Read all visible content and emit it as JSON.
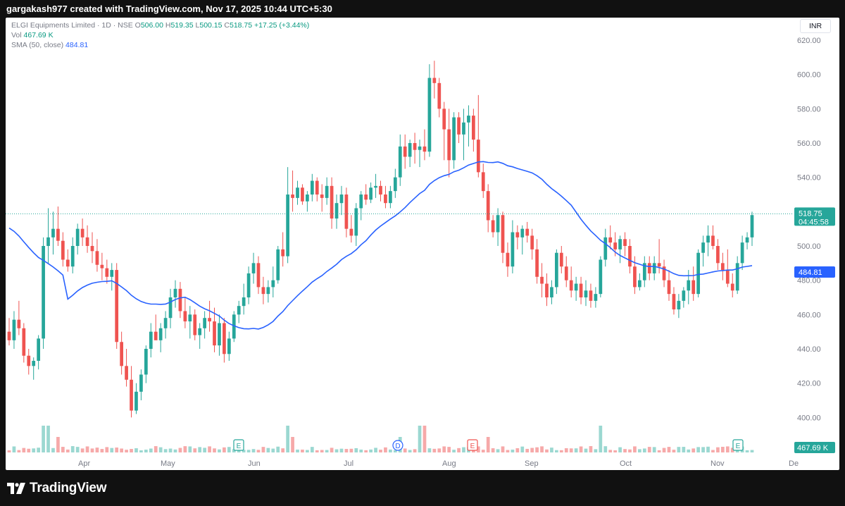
{
  "header": {
    "credit": "gargakash977 created with TradingView.com, Nov 17, 2025 10:44 UTC+5:30"
  },
  "legend": {
    "symbol": "ELGI Equipments Limited · 1D · NSE",
    "o_label": "O",
    "o": "506.00",
    "h_label": "H",
    "h": "519.35",
    "l_label": "L",
    "l": "500.15",
    "c_label": "C",
    "c": "518.75",
    "change": "+17.25 (+3.44%)",
    "vol_label": "Vol",
    "vol": "467.69 K",
    "sma_label": "SMA (50, close)",
    "sma": "484.81"
  },
  "currency": "INR",
  "footer": {
    "brand": "TradingView"
  },
  "colors": {
    "up": "#26a69a",
    "down": "#ef5350",
    "sma": "#2962ff",
    "vol_up": "#9bd8d1",
    "vol_down": "#f6a9a9"
  },
  "chart_data": {
    "type": "candlestick",
    "price_axis": {
      "min": 380,
      "max": 620,
      "ticks": [
        "620.00",
        "600.00",
        "580.00",
        "560.00",
        "540.00",
        "520.00",
        "500.00",
        "480.00",
        "460.00",
        "440.00",
        "420.00",
        "400.00"
      ]
    },
    "x_ticks": [
      "Apr",
      "May",
      "Jun",
      "Jul",
      "Aug",
      "Sep",
      "Oct",
      "Nov",
      "De"
    ],
    "last_price": {
      "label": "518.75",
      "countdown": "04:45:58",
      "value": 518.75
    },
    "sma_value": {
      "label": "484.81",
      "value": 484.81
    },
    "volume_label": "467.69 K",
    "events": [
      {
        "label": "E",
        "type": "earnings",
        "date": "May 29"
      },
      {
        "label": "D",
        "type": "dividend",
        "date": "Jul 25"
      },
      {
        "label": "E",
        "type": "earnings",
        "date": "Aug 7"
      },
      {
        "label": "E",
        "type": "earnings",
        "date": "Nov 11"
      }
    ],
    "ohlc": [
      [
        450,
        458,
        442,
        445
      ],
      [
        445,
        462,
        440,
        457
      ],
      [
        457,
        468,
        448,
        452
      ],
      [
        452,
        455,
        432,
        436
      ],
      [
        436,
        440,
        425,
        430
      ],
      [
        430,
        435,
        422,
        433
      ],
      [
        433,
        448,
        428,
        446
      ],
      [
        446,
        505,
        440,
        500
      ],
      [
        500,
        522,
        490,
        505
      ],
      [
        505,
        520,
        495,
        510
      ],
      [
        510,
        523,
        500,
        503
      ],
      [
        503,
        508,
        488,
        492
      ],
      [
        492,
        498,
        485,
        488
      ],
      [
        488,
        505,
        484,
        500
      ],
      [
        500,
        513,
        495,
        510
      ],
      [
        510,
        516,
        500,
        505
      ],
      [
        505,
        512,
        496,
        500
      ],
      [
        500,
        508,
        490,
        497
      ],
      [
        497,
        504,
        485,
        489
      ],
      [
        489,
        496,
        480,
        487
      ],
      [
        487,
        492,
        478,
        482
      ],
      [
        482,
        490,
        474,
        486
      ],
      [
        486,
        490,
        440,
        444
      ],
      [
        444,
        450,
        425,
        430
      ],
      [
        430,
        440,
        418,
        422
      ],
      [
        422,
        430,
        400,
        404
      ],
      [
        404,
        420,
        402,
        415
      ],
      [
        415,
        428,
        410,
        425
      ],
      [
        425,
        442,
        420,
        440
      ],
      [
        440,
        455,
        435,
        450
      ],
      [
        450,
        460,
        446,
        445
      ],
      [
        445,
        455,
        438,
        452
      ],
      [
        452,
        462,
        446,
        458
      ],
      [
        458,
        475,
        452,
        470
      ],
      [
        470,
        480,
        464,
        475
      ],
      [
        475,
        479,
        458,
        462
      ],
      [
        462,
        470,
        452,
        456
      ],
      [
        456,
        465,
        446,
        460
      ],
      [
        460,
        463,
        445,
        448
      ],
      [
        448,
        455,
        440,
        452
      ],
      [
        452,
        462,
        446,
        458
      ],
      [
        458,
        468,
        450,
        456
      ],
      [
        456,
        464,
        438,
        442
      ],
      [
        442,
        460,
        436,
        455
      ],
      [
        455,
        458,
        432,
        437
      ],
      [
        437,
        450,
        433,
        446
      ],
      [
        446,
        462,
        444,
        460
      ],
      [
        460,
        468,
        455,
        465
      ],
      [
        465,
        478,
        460,
        470
      ],
      [
        470,
        488,
        466,
        484
      ],
      [
        484,
        496,
        478,
        490
      ],
      [
        490,
        494,
        472,
        476
      ],
      [
        476,
        482,
        466,
        472
      ],
      [
        472,
        480,
        467,
        476
      ],
      [
        476,
        488,
        470,
        480
      ],
      [
        480,
        500,
        478,
        498
      ],
      [
        498,
        508,
        488,
        494
      ],
      [
        494,
        546,
        490,
        530
      ],
      [
        530,
        544,
        520,
        528
      ],
      [
        528,
        538,
        524,
        534
      ],
      [
        534,
        536,
        524,
        526
      ],
      [
        526,
        532,
        520,
        530
      ],
      [
        530,
        542,
        526,
        538
      ],
      [
        538,
        540,
        526,
        530
      ],
      [
        530,
        536,
        520,
        528
      ],
      [
        528,
        540,
        524,
        535
      ],
      [
        535,
        540,
        510,
        516
      ],
      [
        516,
        530,
        510,
        525
      ],
      [
        525,
        535,
        518,
        530
      ],
      [
        530,
        534,
        505,
        510
      ],
      [
        510,
        518,
        502,
        506
      ],
      [
        506,
        525,
        500,
        522
      ],
      [
        522,
        532,
        515,
        530
      ],
      [
        530,
        536,
        524,
        527
      ],
      [
        527,
        537,
        525,
        534
      ],
      [
        534,
        542,
        528,
        535
      ],
      [
        535,
        538,
        526,
        530
      ],
      [
        530,
        535,
        522,
        525
      ],
      [
        525,
        535,
        522,
        532
      ],
      [
        532,
        545,
        528,
        540
      ],
      [
        540,
        565,
        535,
        558
      ],
      [
        558,
        565,
        545,
        552
      ],
      [
        552,
        562,
        546,
        560
      ],
      [
        560,
        566,
        548,
        556
      ],
      [
        556,
        562,
        546,
        558
      ],
      [
        558,
        568,
        550,
        555
      ],
      [
        555,
        606,
        552,
        598
      ],
      [
        598,
        608,
        586,
        595
      ],
      [
        595,
        598,
        575,
        580
      ],
      [
        580,
        584,
        550,
        568
      ],
      [
        568,
        580,
        540,
        550
      ],
      [
        550,
        578,
        545,
        575
      ],
      [
        575,
        578,
        560,
        565
      ],
      [
        565,
        580,
        550,
        572
      ],
      [
        572,
        582,
        558,
        576
      ],
      [
        576,
        580,
        555,
        562
      ],
      [
        562,
        588,
        540,
        543
      ],
      [
        543,
        548,
        528,
        532
      ],
      [
        532,
        536,
        508,
        515
      ],
      [
        515,
        518,
        505,
        508
      ],
      [
        508,
        522,
        500,
        518
      ],
      [
        518,
        520,
        490,
        496
      ],
      [
        496,
        502,
        482,
        488
      ],
      [
        488,
        515,
        484,
        508
      ],
      [
        508,
        512,
        498,
        505
      ],
      [
        505,
        512,
        495,
        510
      ],
      [
        510,
        514,
        502,
        506
      ],
      [
        506,
        510,
        492,
        498
      ],
      [
        498,
        504,
        478,
        482
      ],
      [
        482,
        490,
        470,
        478
      ],
      [
        478,
        484,
        465,
        470
      ],
      [
        470,
        480,
        466,
        476
      ],
      [
        476,
        498,
        472,
        496
      ],
      [
        496,
        500,
        484,
        488
      ],
      [
        488,
        494,
        476,
        480
      ],
      [
        480,
        488,
        470,
        474
      ],
      [
        474,
        482,
        468,
        478
      ],
      [
        478,
        482,
        466,
        470
      ],
      [
        470,
        480,
        465,
        474
      ],
      [
        474,
        478,
        464,
        468
      ],
      [
        468,
        476,
        464,
        472
      ],
      [
        472,
        494,
        470,
        492
      ],
      [
        492,
        510,
        488,
        505
      ],
      [
        505,
        512,
        498,
        502
      ],
      [
        502,
        508,
        494,
        498
      ],
      [
        498,
        506,
        490,
        504
      ],
      [
        504,
        508,
        494,
        500
      ],
      [
        500,
        504,
        484,
        488
      ],
      [
        488,
        494,
        472,
        476
      ],
      [
        476,
        484,
        474,
        480
      ],
      [
        480,
        494,
        476,
        490
      ],
      [
        490,
        494,
        480,
        484
      ],
      [
        484,
        494,
        480,
        490
      ],
      [
        490,
        504,
        484,
        488
      ],
      [
        488,
        492,
        476,
        480
      ],
      [
        480,
        486,
        468,
        472
      ],
      [
        472,
        476,
        460,
        463
      ],
      [
        463,
        472,
        458,
        468
      ],
      [
        468,
        476,
        464,
        474
      ],
      [
        474,
        486,
        466,
        480
      ],
      [
        480,
        488,
        468,
        472
      ],
      [
        472,
        498,
        470,
        496
      ],
      [
        496,
        506,
        488,
        502
      ],
      [
        502,
        512,
        494,
        506
      ],
      [
        506,
        512,
        498,
        500
      ],
      [
        500,
        504,
        486,
        490
      ],
      [
        490,
        496,
        480,
        486
      ],
      [
        486,
        498,
        476,
        478
      ],
      [
        478,
        484,
        470,
        474
      ],
      [
        474,
        494,
        472,
        490
      ],
      [
        490,
        506,
        486,
        502
      ],
      [
        502,
        508,
        498,
        505
      ],
      [
        505,
        520,
        500,
        518
      ]
    ]
  }
}
